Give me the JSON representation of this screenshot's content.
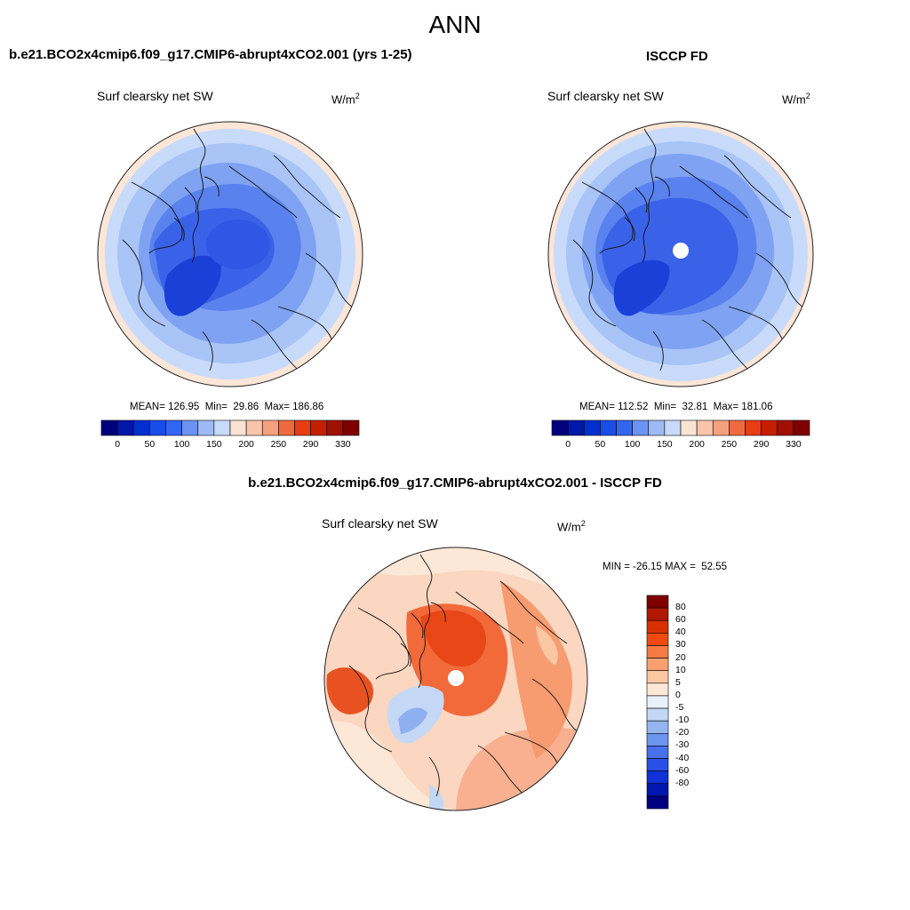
{
  "title": "ANN",
  "panels": [
    {
      "case": "b.e21.BCO2x4cmip6.f09_g17.CMIP6-abrupt4xCO2.001 (yrs 1-25)",
      "variable": "Surf clearsky net SW",
      "units": "W/m",
      "units_sup": "2",
      "stats": "MEAN= 126.95  Min=  29.86  Max= 186.86",
      "pole_hole": false
    },
    {
      "case": "ISCCP FD",
      "variable": "Surf clearsky net SW",
      "units": "W/m",
      "units_sup": "2",
      "stats": "MEAN= 112.52  Min=  32.81  Max= 181.06",
      "pole_hole": true
    }
  ],
  "abs_colorbar": {
    "colors": [
      "#00007f",
      "#0018a8",
      "#0030d0",
      "#1a4de8",
      "#3366f0",
      "#6b93f2",
      "#9dbaf4",
      "#c8dafa",
      "#fbe3d3",
      "#f8c5ab",
      "#f5a07e",
      "#f06a40",
      "#e83c14",
      "#c42000",
      "#a01000",
      "#7f0000"
    ],
    "labels": [
      "0",
      "50",
      "100",
      "150",
      "200",
      "250",
      "290",
      "330"
    ]
  },
  "diff": {
    "title": "b.e21.BCO2x4cmip6.f09_g17.CMIP6-abrupt4xCO2.001 - ISCCP FD",
    "variable": "Surf clearsky net SW",
    "units": "W/m",
    "units_sup": "2",
    "stats": "MIN = -26.15 MAX =  52.55"
  },
  "diff_colorbar": {
    "colors": [
      "#7f0000",
      "#b01800",
      "#d83000",
      "#f04a10",
      "#f57a45",
      "#f8a070",
      "#fbc7a3",
      "#fde8d8",
      "#e9f1fb",
      "#c3d7f5",
      "#95b5f0",
      "#6d95ee",
      "#4870ea",
      "#2a4fe6",
      "#1030d8",
      "#0018b0",
      "#000080"
    ],
    "labels": [
      "80",
      "60",
      "40",
      "30",
      "20",
      "10",
      "5",
      "0",
      "-5",
      "-10",
      "-20",
      "-30",
      "-40",
      "-60",
      "-80"
    ]
  },
  "chart_data": [
    {
      "type": "heatmap",
      "projection": "north polar stereographic",
      "title": "Surf clearsky net SW",
      "units": "W/m2",
      "stats": {
        "mean": 126.95,
        "min": 29.86,
        "max": 186.86
      },
      "colorbar_levels": [
        0,
        50,
        100,
        150,
        200,
        250,
        290,
        330
      ]
    },
    {
      "type": "heatmap",
      "projection": "north polar stereographic",
      "title": "Surf clearsky net SW",
      "units": "W/m2",
      "stats": {
        "mean": 112.52,
        "min": 32.81,
        "max": 181.06
      },
      "colorbar_levels": [
        0,
        50,
        100,
        150,
        200,
        250,
        290,
        330
      ]
    },
    {
      "type": "heatmap",
      "projection": "north polar stereographic",
      "title": "Surf clearsky net SW",
      "units": "W/m2",
      "stats": {
        "min": -26.15,
        "max": 52.55
      },
      "colorbar_levels": [
        -80,
        -60,
        -40,
        -30,
        -20,
        -10,
        -5,
        0,
        5,
        10,
        20,
        30,
        40,
        60,
        80
      ]
    }
  ]
}
